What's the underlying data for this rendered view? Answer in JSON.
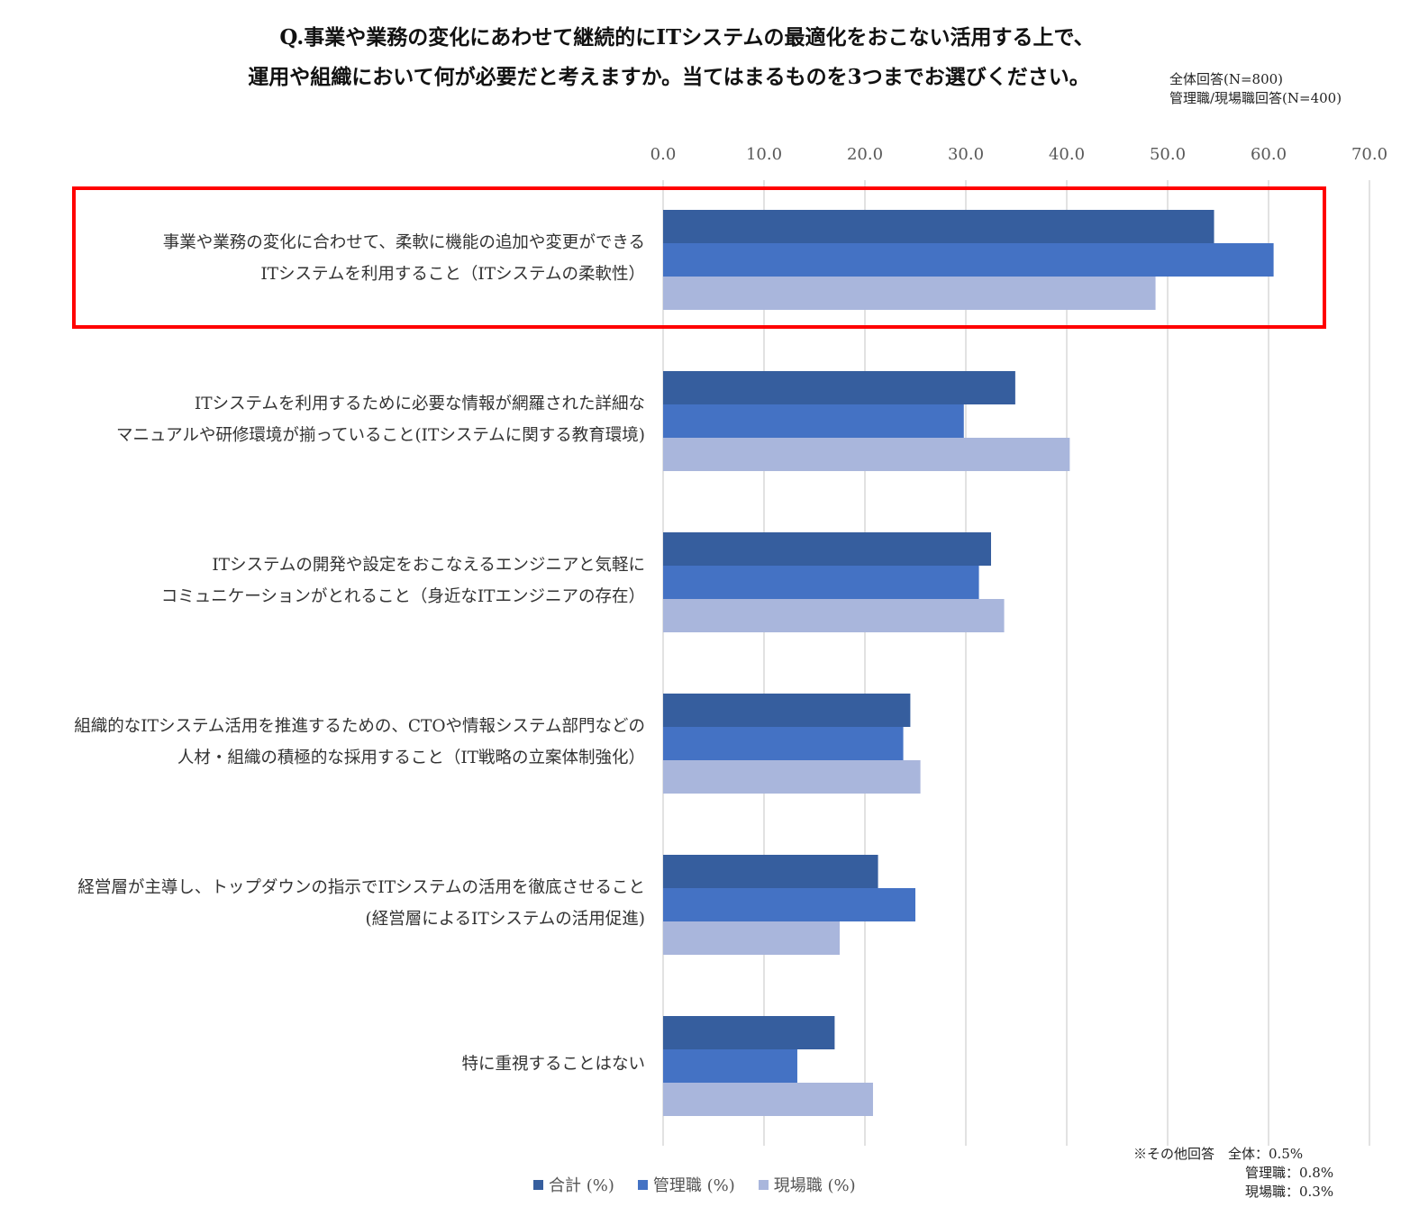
{
  "title_line1": "Q.事業や業務の変化にあわせて継続的にITシステムの最適化をおこない活用する上で、",
  "title_line2": "運用や組織において何が必要だと考えますか。当てはまるものを3つまでお選びください。",
  "sample_all": "全体回答(N=800)",
  "sample_roles": "管理職/現場職回答(N=400)",
  "colors": {
    "total": "#365e9e",
    "manager": "#4472c4",
    "field": "#a9b6dc",
    "highlight": "#ff0000",
    "grid": "#d9d9d9"
  },
  "other_note": {
    "line1": "※その他回答　全体：0.5%",
    "line2": "管理職：0.8%",
    "line3": "現場職：0.3%"
  },
  "chart_data": {
    "type": "bar",
    "orientation": "horizontal",
    "title": "Q.事業や業務の変化にあわせて継続的にITシステムの最適化をおこない活用する上で、運用や組織において何が必要だと考えますか。当てはまるものを3つまでお選びください。",
    "xlim": [
      0,
      70
    ],
    "ticks": [
      "0.0",
      "10.0",
      "20.0",
      "30.0",
      "40.0",
      "50.0",
      "60.0",
      "70.0"
    ],
    "grid": true,
    "legend_position": "bottom",
    "categories": [
      [
        "事業や業務の変化に合わせて、柔軟に機能の追加や変更ができる",
        "ITシステムを利用すること（ITシステムの柔軟性）"
      ],
      [
        "ITシステムを利用するために必要な情報が網羅された詳細な",
        "マニュアルや研修環境が揃っていること(ITシステムに関する教育環境)"
      ],
      [
        "ITシステムの開発や設定をおこなえるエンジニアと気軽に",
        "コミュニケーションがとれること（身近なITエンジニアの存在）"
      ],
      [
        "組織的なITシステム活用を推進するための、CTOや情報システム部門などの",
        "人材・組織の積極的な採用すること（IT戦略の立案体制強化）"
      ],
      [
        "経営層が主導し、トップダウンの指示でITシステムの活用を徹底させること",
        "(経営層によるITシステムの活用促進)"
      ],
      [
        "特に重視することはない"
      ]
    ],
    "series": [
      {
        "name": "合計 (%)",
        "values": [
          54.6,
          34.9,
          32.5,
          24.5,
          21.3,
          17.0
        ]
      },
      {
        "name": "管理職 (%)",
        "values": [
          60.5,
          29.8,
          31.3,
          23.8,
          25.0,
          13.3
        ]
      },
      {
        "name": "現場職 (%)",
        "values": [
          48.8,
          40.3,
          33.8,
          25.5,
          17.5,
          20.8
        ]
      }
    ],
    "highlighted_category": 0
  }
}
